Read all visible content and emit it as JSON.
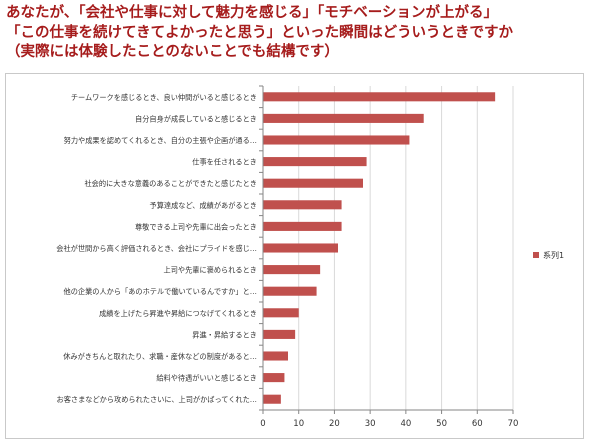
{
  "header": {
    "line1": "あなたが、「会社や仕事に対して魅力を感じる」「モチベーションが上がる」",
    "line2": "「この仕事を続けてきてよかったと思う」といった瞬間はどういうときですか",
    "line3": "（実際には体験したことのないことでも結構です）"
  },
  "colors": {
    "bar": "#c0504d",
    "grid": "#d9d9d9",
    "axis": "#868686",
    "title": "#a61c1c"
  },
  "chart_data": {
    "type": "bar",
    "orientation": "horizontal",
    "categories": [
      "チームワークを感じるとき、良い仲間がいると感じるとき",
      "自分自身が成長していると感じるとき",
      "努力や成果を認めてくれるとき、自分の主張や企画が通る…",
      "仕事を任されるとき",
      "社会的に大きな意義のあることができたと感じたとき",
      "予算達成など、成績があがるとき",
      "尊敬できる上司や先輩に出会ったとき",
      "会社が世間から高く評価されるとき、会社にプライドを感じ…",
      "上司や先輩に褒められるとき",
      "他の企業の人から「あのホテルで働いているんですか」と…",
      "成績を上げたら昇進や昇給につなげてくれるとき",
      "昇進・昇給するとき",
      "休みがきちんと取れたり、求職・産休などの制度があると…",
      "給料や待遇がいいと感じるとき",
      "お客さまなどから攻められたさいに、上司がかばってくれた…"
    ],
    "series": [
      {
        "name": "系列1",
        "values": [
          65,
          45,
          41,
          29,
          28,
          22,
          22,
          21,
          16,
          15,
          10,
          9,
          7,
          6,
          5
        ]
      }
    ],
    "xlim": [
      0,
      70
    ],
    "xticks": [
      0,
      10,
      20,
      30,
      40,
      50,
      60,
      70
    ],
    "grid": "vertical",
    "legend": "right"
  }
}
